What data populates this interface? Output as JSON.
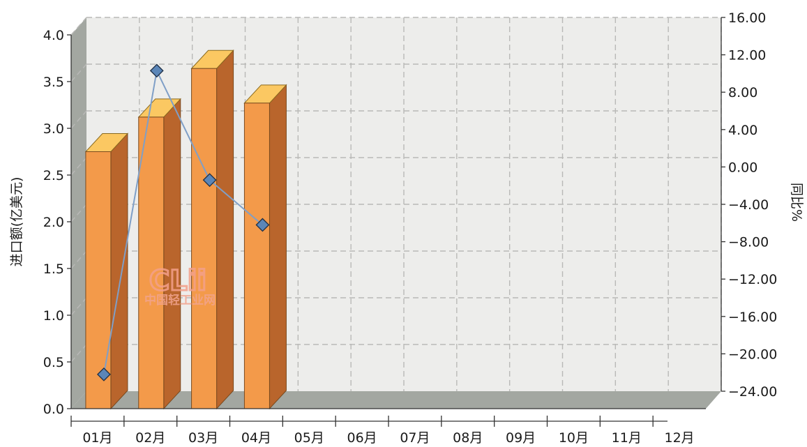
{
  "chart_data": {
    "type": "bar",
    "categories": [
      "01月",
      "02月",
      "03月",
      "04月",
      "05月",
      "06月",
      "07月",
      "08月",
      "09月",
      "10月",
      "11月",
      "12月"
    ],
    "series": [
      {
        "values": [
          2.75,
          3.12,
          3.64,
          3.27,
          null,
          null,
          null,
          null,
          null,
          null,
          null,
          null
        ],
        "axis": "left",
        "kind": "bar",
        "color": "#f39a4a"
      },
      {
        "values": [
          -22.2,
          10.3,
          -1.4,
          -6.2,
          null,
          null,
          null,
          null,
          null,
          null,
          null,
          null
        ],
        "axis": "right",
        "kind": "line",
        "color": "#6a8fbd"
      }
    ],
    "ylabel": "进口额(亿美元)",
    "y2label": "同比%",
    "ylim": [
      0,
      4.0
    ],
    "y2lim": [
      -24,
      16
    ],
    "yticks": [
      "0.0",
      "0.5",
      "1.0",
      "1.5",
      "2.0",
      "2.5",
      "3.0",
      "3.5",
      "4.0"
    ],
    "y2ticks": [
      "16.00",
      "12.00",
      "8.00",
      "4.00",
      "0.00",
      "−4.00",
      "−8.00",
      "−12.00",
      "−16.00",
      "−20.00",
      "−24.00"
    ],
    "grid": true,
    "watermark": {
      "logo": "CLii",
      "text": "中国轻工业网"
    },
    "colors": {
      "plot_bg": "#ededeb",
      "grid": "#b9b9b7",
      "wall_shade": "#a3a7a1",
      "bar_front": "#f39a4a",
      "bar_side": "#b9652c",
      "bar_top": "#fbc862",
      "marker": "#5b86b8",
      "line": "#7f9fc7"
    }
  }
}
